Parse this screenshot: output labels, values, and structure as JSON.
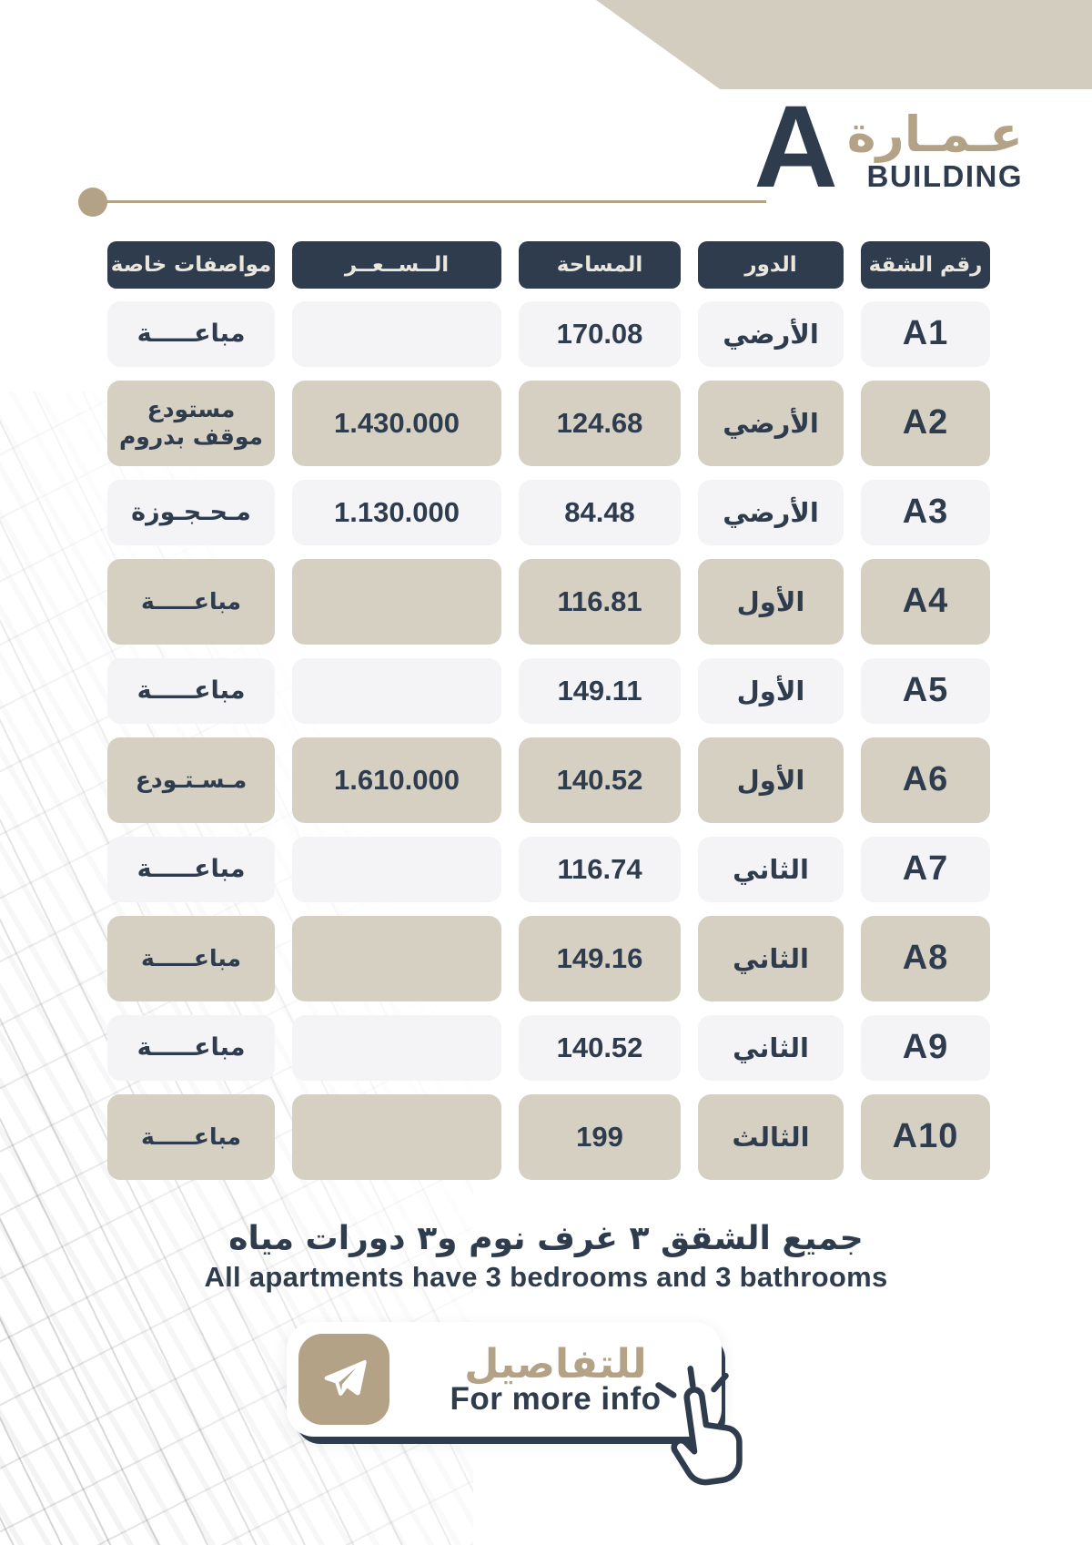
{
  "colors": {
    "navy": "#2e3c4e",
    "tan": "#b3a285",
    "beige_cell": "#d6d0c3",
    "light_cell": "#f4f4f6",
    "header_text": "#eae6dc",
    "corner_band": "#d3cdbf"
  },
  "header": {
    "building_letter": "A",
    "title_ar": "عـمـارة",
    "title_en": "BUILDING"
  },
  "table": {
    "columns": [
      {
        "key": "apt",
        "label": "رقم الشقة"
      },
      {
        "key": "floor",
        "label": "الدور"
      },
      {
        "key": "area",
        "label": "المساحة"
      },
      {
        "key": "price",
        "label": "الــســعــر"
      },
      {
        "key": "specs",
        "label": "مواصفات خاصة"
      }
    ],
    "rows": [
      {
        "apt": "A1",
        "floor": "الأرضي",
        "area": "170.08",
        "price": "",
        "specs": "مباعـــــة",
        "shaded": false
      },
      {
        "apt": "A2",
        "floor": "الأرضي",
        "area": "124.68",
        "price": "1.430.000",
        "specs": "مستودع\nموقف بدروم",
        "shaded": true
      },
      {
        "apt": "A3",
        "floor": "الأرضي",
        "area": "84.48",
        "price": "1.130.000",
        "specs": "مـحـجـوزة",
        "shaded": false
      },
      {
        "apt": "A4",
        "floor": "الأول",
        "area": "116.81",
        "price": "",
        "specs": "مباعـــــة",
        "shaded": true
      },
      {
        "apt": "A5",
        "floor": "الأول",
        "area": "149.11",
        "price": "",
        "specs": "مباعـــــة",
        "shaded": false
      },
      {
        "apt": "A6",
        "floor": "الأول",
        "area": "140.52",
        "price": "1.610.000",
        "specs": "مـسـتـودع",
        "shaded": true
      },
      {
        "apt": "A7",
        "floor": "الثاني",
        "area": "116.74",
        "price": "",
        "specs": "مباعـــــة",
        "shaded": false
      },
      {
        "apt": "A8",
        "floor": "الثاني",
        "area": "149.16",
        "price": "",
        "specs": "مباعـــــة",
        "shaded": true
      },
      {
        "apt": "A9",
        "floor": "الثاني",
        "area": "140.52",
        "price": "",
        "specs": "مباعـــــة",
        "shaded": false
      },
      {
        "apt": "A10",
        "floor": "الثالث",
        "area": "199",
        "price": "",
        "specs": "مباعـــــة",
        "shaded": true
      }
    ]
  },
  "footer": {
    "note_ar": "جميع الشقق ٣ غرف نوم و٣ دورات مياه",
    "note_en": "All apartments have 3 bedrooms and 3 bathrooms",
    "cta_ar": "للتفاصيل",
    "cta_en": "For more info"
  }
}
